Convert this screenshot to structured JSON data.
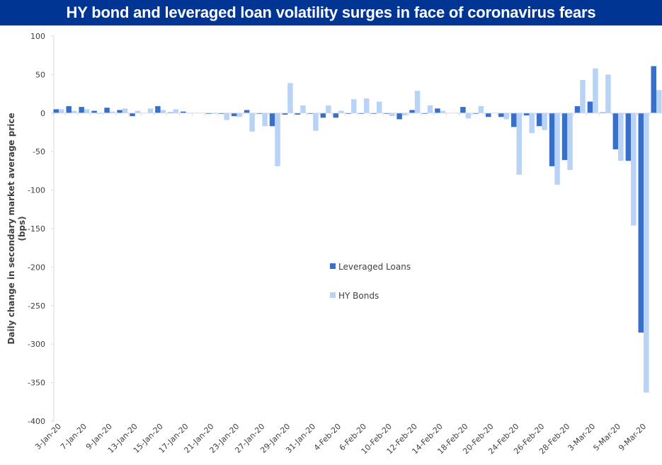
{
  "header": {
    "title": "HY bond and leveraged loan volatility surges in face of coronavirus fears"
  },
  "colors": {
    "title_bg": "#003594",
    "leveraged_loans": "#3a6fc9",
    "hy_bonds": "#b9d3f7",
    "axis": "#d9d9d9"
  },
  "chart_data": {
    "type": "bar",
    "title": "HY bond and leveraged loan volatility surges in face of coronavirus fears",
    "xlabel": "",
    "ylabel": "Daily change in  secondary market average price (bps)",
    "ylabel_lines": [
      "Daily change in  secondary market average price",
      "(bps)"
    ],
    "ylim": [
      -400,
      100
    ],
    "yticks": [
      100,
      50,
      0,
      -50,
      -100,
      -150,
      -200,
      -250,
      -300,
      -350,
      -400
    ],
    "grid": false,
    "legend_position": "center",
    "categories": [
      "3-Jan-20",
      "6-Jan-20",
      "7-Jan-20",
      "8-Jan-20",
      "9-Jan-20",
      "10-Jan-20",
      "13-Jan-20",
      "14-Jan-20",
      "15-Jan-20",
      "16-Jan-20",
      "17-Jan-20",
      "20-Jan-20",
      "21-Jan-20",
      "22-Jan-20",
      "23-Jan-20",
      "24-Jan-20",
      "27-Jan-20",
      "28-Jan-20",
      "29-Jan-20",
      "30-Jan-20",
      "31-Jan-20",
      "3-Feb-20",
      "4-Feb-20",
      "5-Feb-20",
      "6-Feb-20",
      "7-Feb-20",
      "10-Feb-20",
      "11-Feb-20",
      "12-Feb-20",
      "13-Feb-20",
      "14-Feb-20",
      "17-Feb-20",
      "18-Feb-20",
      "19-Feb-20",
      "20-Feb-20",
      "21-Feb-20",
      "24-Feb-20",
      "25-Feb-20",
      "26-Feb-20",
      "27-Feb-20",
      "28-Feb-20",
      "2-Mar-20",
      "3-Mar-20",
      "4-Mar-20",
      "5-Mar-20",
      "6-Mar-20",
      "9-Mar-20",
      "10-Mar-20"
    ],
    "tick_labels_shown": [
      "3-Jan-20",
      "7-Jan-20",
      "9-Jan-20",
      "13-Jan-20",
      "15-Jan-20",
      "17-Jan-20",
      "21-Jan-20",
      "23-Jan-20",
      "27-Jan-20",
      "29-Jan-20",
      "31-Jan-20",
      "4-Feb-20",
      "6-Feb-20",
      "10-Feb-20",
      "12-Feb-20",
      "14-Feb-20",
      "18-Feb-20",
      "20-Feb-20",
      "24-Feb-20",
      "26-Feb-20",
      "28-Feb-20",
      "3-Mar-20",
      "5-Mar-20",
      "9-Mar-20"
    ],
    "series": [
      {
        "name": "Leveraged Loans",
        "values": [
          5,
          9,
          8,
          3,
          7,
          4,
          -4,
          0,
          9,
          1,
          2,
          0,
          -1,
          -1,
          -4,
          4,
          -1,
          -17,
          -2,
          -2,
          -1,
          -6,
          -6,
          -1,
          -1,
          -1,
          -1,
          -8,
          4,
          -1,
          6,
          0,
          8,
          -1,
          -5,
          -5,
          -18,
          -3,
          -17,
          -69,
          -61,
          9,
          15,
          1,
          -47,
          -62,
          -285,
          61
        ]
      },
      {
        "name": "HY Bonds",
        "values": [
          5,
          3,
          5,
          -1,
          2,
          6,
          3,
          6,
          4,
          5,
          0,
          0,
          -1,
          -9,
          -5,
          -24,
          -17,
          -69,
          39,
          10,
          -23,
          10,
          3,
          18,
          19,
          15,
          -4,
          -3,
          29,
          10,
          3,
          0,
          -7,
          9,
          0,
          -8,
          -80,
          -26,
          -22,
          -93,
          -74,
          43,
          58,
          50,
          -62,
          -146,
          -363,
          30
        ]
      }
    ]
  }
}
